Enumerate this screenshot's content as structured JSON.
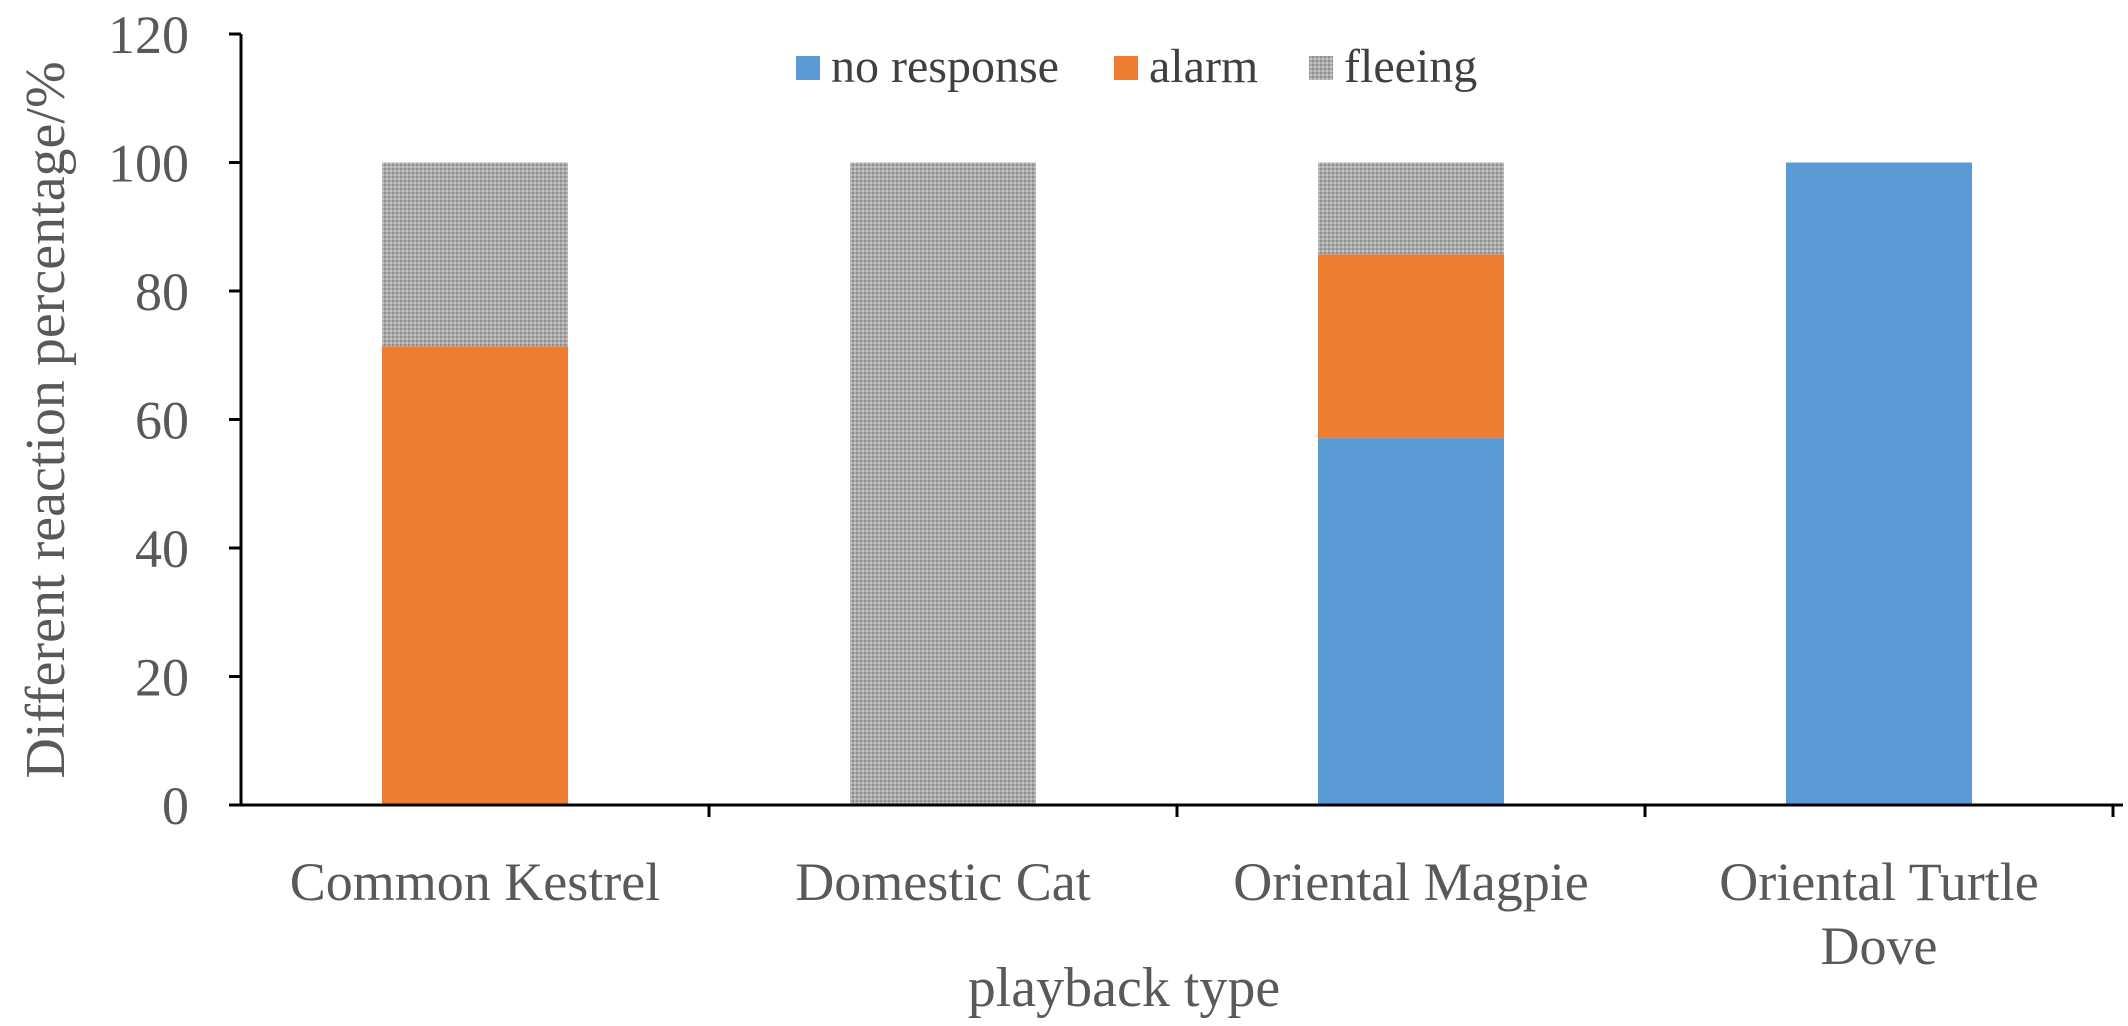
{
  "chart_data": {
    "type": "bar",
    "stacked": true,
    "categories": [
      "Common Kestrel",
      "Domestic Cat",
      "Oriental Magpie",
      "Oriental Turtle Dove"
    ],
    "category_label_lines": [
      [
        "Common Kestrel"
      ],
      [
        "Domestic Cat"
      ],
      [
        "Oriental Magpie"
      ],
      [
        "Oriental Turtle",
        "Dove"
      ]
    ],
    "series": [
      {
        "name": "no response",
        "color": "#5B9BD5",
        "values": [
          0,
          0,
          57.1,
          100
        ]
      },
      {
        "name": "alarm",
        "color": "#ED7D31",
        "values": [
          71.4,
          0,
          28.6,
          0
        ]
      },
      {
        "name": "fleeing",
        "color": "#A5A5A5",
        "pattern": "dotted",
        "values": [
          28.6,
          100,
          14.3,
          0
        ]
      }
    ],
    "xlabel": "playback type",
    "ylabel": "Different reaction percentage/%",
    "ylim": [
      0,
      120
    ],
    "yticks": [
      0,
      20,
      40,
      60,
      80,
      100,
      120
    ],
    "grid": false,
    "legend_position": "top-center"
  }
}
